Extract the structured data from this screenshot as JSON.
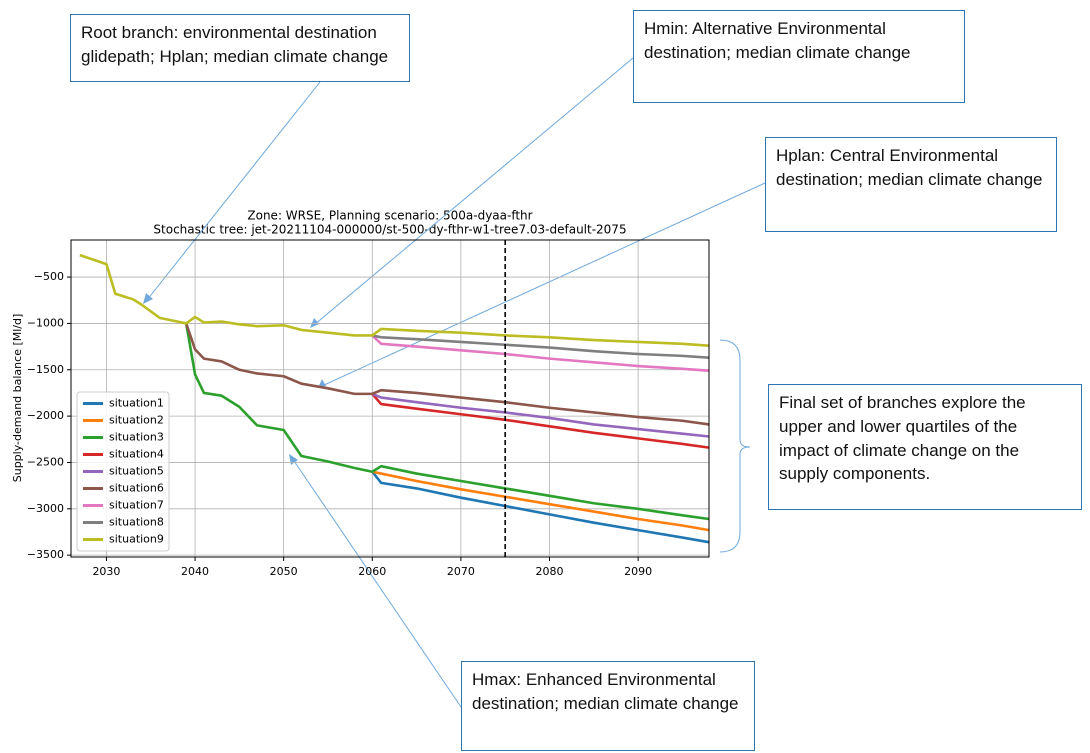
{
  "chart_data": {
    "type": "line",
    "title": "Zone: WRSE, Planning scenario: 500a-dyaa-fthr",
    "subtitle": "Stochastic tree: jet-20211104-000000/st-500-dy-fthr-w1-tree7.03-default-2075",
    "y_label": "Supply-demand balance [Ml/d]",
    "x": [
      2027,
      2030,
      2031,
      2033,
      2034,
      2036,
      2039,
      2040,
      2041,
      2043,
      2045,
      2047,
      2050,
      2052,
      2055,
      2058,
      2060,
      2061,
      2065,
      2070,
      2075,
      2080,
      2085,
      2090,
      2095,
      2098
    ],
    "xlim": [
      2026,
      2098
    ],
    "xticks": [
      2030,
      2040,
      2050,
      2060,
      2070,
      2080,
      2090
    ],
    "ylim": [
      -3520,
      -100
    ],
    "yticks": [
      {
        "value": -3500,
        "label": "−3500"
      },
      {
        "value": -3000,
        "label": "−3000"
      },
      {
        "value": -2500,
        "label": "−2500"
      },
      {
        "value": -2000,
        "label": "−2000"
      },
      {
        "value": -1500,
        "label": "−1500"
      },
      {
        "value": -1000,
        "label": "−1000"
      },
      {
        "value": -500,
        "label": "−500"
      }
    ],
    "grid": true,
    "vline": 2075,
    "legend": "lower left",
    "series": [
      {
        "name": "situation1",
        "color": "#1f77b4",
        "values": [
          null,
          null,
          null,
          null,
          null,
          null,
          null,
          null,
          null,
          null,
          null,
          null,
          null,
          null,
          null,
          null,
          -2600,
          -2720,
          -2780,
          -2880,
          -2970,
          -3060,
          -3150,
          -3230,
          -3310,
          -3360
        ]
      },
      {
        "name": "situation2",
        "color": "#ff7f0e",
        "values": [
          null,
          null,
          null,
          null,
          null,
          null,
          null,
          null,
          null,
          null,
          null,
          null,
          null,
          null,
          null,
          null,
          -2600,
          -2620,
          -2700,
          -2790,
          -2870,
          -2950,
          -3030,
          -3110,
          -3180,
          -3230
        ]
      },
      {
        "name": "situation3",
        "color": "#2ca02c",
        "values": [
          null,
          null,
          null,
          null,
          null,
          null,
          -1000,
          -1550,
          -1750,
          -1780,
          -1900,
          -2100,
          -2150,
          -2430,
          -2490,
          -2560,
          -2600,
          -2540,
          -2620,
          -2700,
          -2780,
          -2860,
          -2940,
          -3000,
          -3070,
          -3110
        ]
      },
      {
        "name": "situation4",
        "color": "#d62728",
        "values": [
          null,
          null,
          null,
          null,
          null,
          null,
          null,
          null,
          null,
          null,
          null,
          null,
          null,
          null,
          null,
          null,
          -1760,
          -1870,
          -1920,
          -1980,
          -2040,
          -2110,
          -2180,
          -2240,
          -2300,
          -2340
        ]
      },
      {
        "name": "situation5",
        "color": "#9467bd",
        "values": [
          null,
          null,
          null,
          null,
          null,
          null,
          null,
          null,
          null,
          null,
          null,
          null,
          null,
          null,
          null,
          null,
          -1760,
          -1800,
          -1850,
          -1910,
          -1960,
          -2020,
          -2090,
          -2140,
          -2190,
          -2220
        ]
      },
      {
        "name": "situation6",
        "color": "#8c564b",
        "values": [
          null,
          null,
          null,
          null,
          null,
          null,
          -1000,
          -1280,
          -1380,
          -1410,
          -1500,
          -1540,
          -1570,
          -1650,
          -1700,
          -1760,
          -1760,
          -1720,
          -1750,
          -1800,
          -1850,
          -1910,
          -1960,
          -2010,
          -2050,
          -2090
        ]
      },
      {
        "name": "situation7",
        "color": "#e377c2",
        "values": [
          null,
          null,
          null,
          null,
          null,
          null,
          null,
          null,
          null,
          null,
          null,
          null,
          null,
          null,
          null,
          null,
          -1130,
          -1220,
          -1250,
          -1290,
          -1330,
          -1380,
          -1420,
          -1460,
          -1490,
          -1510
        ]
      },
      {
        "name": "situation8",
        "color": "#7f7f7f",
        "values": [
          null,
          null,
          null,
          null,
          null,
          null,
          null,
          null,
          null,
          null,
          null,
          null,
          null,
          null,
          null,
          null,
          -1130,
          -1150,
          -1170,
          -1200,
          -1230,
          -1260,
          -1300,
          -1330,
          -1350,
          -1370
        ]
      },
      {
        "name": "situation9",
        "color": "#bcbd22",
        "values": [
          -263,
          -360,
          -680,
          -740,
          -800,
          -940,
          -1000,
          -930,
          -990,
          -980,
          -1010,
          -1030,
          -1020,
          -1070,
          -1100,
          -1130,
          -1130,
          -1060,
          -1080,
          -1100,
          -1130,
          -1150,
          -1180,
          -1200,
          -1220,
          -1240
        ]
      }
    ],
    "annotations": [
      "Root branch: environmental destination glidepath; Hplan; median climate change",
      "Hmin: Alternative Environmental destination; median climate change",
      "Hplan: Central Environmental destination; median climate change",
      "Final set of branches explore the upper and lower quartiles of the impact of climate change on the supply components.",
      "Hmax: Enhanced Environmental destination; median climate change"
    ]
  }
}
